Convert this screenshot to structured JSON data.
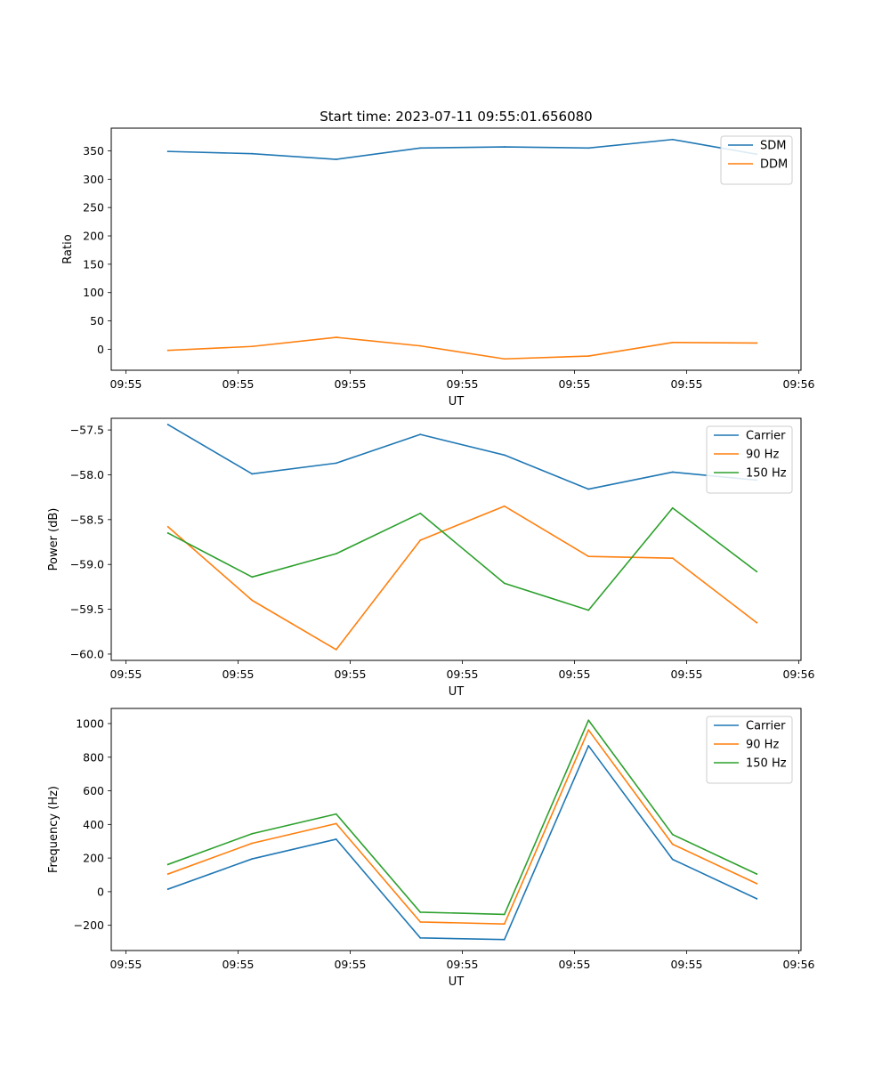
{
  "chart_data": [
    {
      "type": "line",
      "title": "Start time: 2023-07-11 09:55:01.656080",
      "xlabel": "UT",
      "ylabel": "Ratio",
      "x_tick_labels": [
        "09:55",
        "09:55",
        "09:55",
        "09:55",
        "09:55",
        "09:55",
        "09:55"
      ],
      "x_tick_last": "09:56",
      "yticks": [
        0,
        50,
        100,
        150,
        200,
        250,
        300,
        350
      ],
      "ylim": [
        -37,
        390
      ],
      "legend_position": "top-right",
      "series": [
        {
          "name": "SDM",
          "color": "#1f77b4",
          "values": [
            349,
            345,
            335,
            355,
            357,
            355,
            370,
            344
          ]
        },
        {
          "name": "DDM",
          "color": "#ff7f0e",
          "values": [
            -2,
            5,
            21,
            6,
            -17,
            -12,
            12,
            11
          ]
        }
      ]
    },
    {
      "type": "line",
      "title": "",
      "xlabel": "UT",
      "ylabel": "Power (dB)",
      "x_tick_labels": [
        "09:55",
        "09:55",
        "09:55",
        "09:55",
        "09:55",
        "09:55",
        "09:55"
      ],
      "x_tick_last": "09:56",
      "yticks": [
        -60.0,
        -59.5,
        -59.0,
        -58.5,
        -58.0,
        -57.5
      ],
      "ytick_labels": [
        "−60.0",
        "−59.5",
        "−59.0",
        "−58.5",
        "−58.0",
        "−57.5"
      ],
      "ylim": [
        -60.07,
        -57.37
      ],
      "legend_position": "top-right",
      "series": [
        {
          "name": "Carrier",
          "color": "#1f77b4",
          "values": [
            -57.44,
            -57.99,
            -57.87,
            -57.55,
            -57.78,
            -58.16,
            -57.97,
            -58.06
          ]
        },
        {
          "name": "90 Hz",
          "color": "#ff7f0e",
          "values": [
            -58.58,
            -59.4,
            -59.95,
            -58.73,
            -58.35,
            -58.91,
            -58.93,
            -59.65
          ]
        },
        {
          "name": "150 Hz",
          "color": "#2ca02c",
          "values": [
            -58.65,
            -59.14,
            -58.88,
            -58.43,
            -59.21,
            -59.51,
            -58.37,
            -59.08
          ]
        }
      ]
    },
    {
      "type": "line",
      "title": "",
      "xlabel": "UT",
      "ylabel": "Frequency (Hz)",
      "x_tick_labels": [
        "09:55",
        "09:55",
        "09:55",
        "09:55",
        "09:55",
        "09:55",
        "09:55"
      ],
      "x_tick_last": "09:56",
      "yticks": [
        -200,
        0,
        200,
        400,
        600,
        800,
        1000
      ],
      "ytick_labels": [
        "−200",
        "0",
        "200",
        "400",
        "600",
        "800",
        "1000"
      ],
      "ylim": [
        -350,
        1090
      ],
      "legend_position": "top-right",
      "series": [
        {
          "name": "Carrier",
          "color": "#1f77b4",
          "values": [
            15,
            195,
            312,
            -275,
            -285,
            868,
            192,
            -42
          ]
        },
        {
          "name": "90 Hz",
          "color": "#ff7f0e",
          "values": [
            105,
            288,
            405,
            -180,
            -192,
            962,
            282,
            48
          ]
        },
        {
          "name": "150 Hz",
          "color": "#2ca02c",
          "values": [
            162,
            345,
            462,
            -122,
            -135,
            1020,
            340,
            105
          ]
        }
      ]
    }
  ]
}
